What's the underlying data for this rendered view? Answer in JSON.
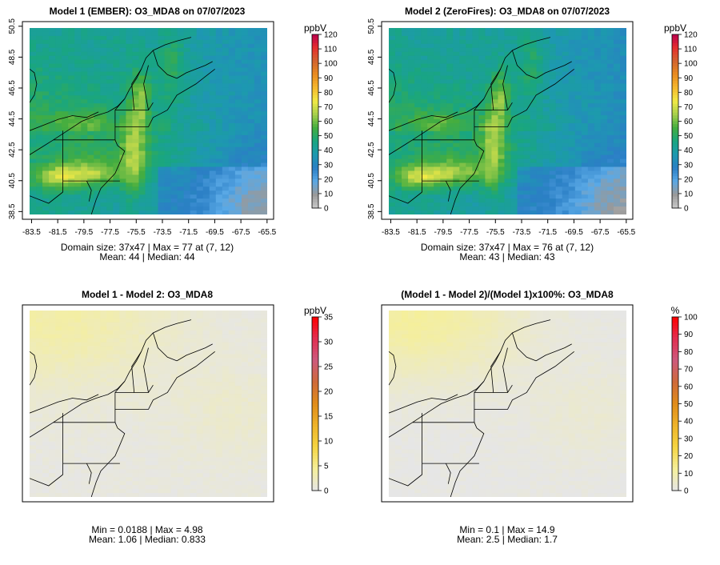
{
  "chart_data": [
    {
      "type": "heatmap",
      "title": "Model 1 (EMBER): O3_MDA8 on 07/07/2023",
      "x_ticks": [
        "-83.5",
        "-81.5",
        "-79.5",
        "-77.5",
        "-75.5",
        "-73.5",
        "-71.5",
        "-69.5",
        "-67.5",
        "-65.5"
      ],
      "y_ticks": [
        "38.5",
        "40.5",
        "42.5",
        "44.5",
        "46.5",
        "48.5",
        "50.5"
      ],
      "xlim": [
        -84.2,
        -65.0
      ],
      "ylim": [
        38.0,
        50.8
      ],
      "colorbar": {
        "unit": "ppbV",
        "ticks": [
          "120",
          "110",
          "100",
          "90",
          "80",
          "70",
          "60",
          "50",
          "40",
          "30",
          "20",
          "10",
          "0"
        ],
        "range": [
          0,
          120
        ],
        "stops": [
          "#c9c9c9",
          "#999999",
          "#5aa9e6",
          "#2b7fc5",
          "#1d99b0",
          "#19a680",
          "#44ad3f",
          "#a6cf4c",
          "#f2ea45",
          "#f5b82e",
          "#e98b1f",
          "#d2642f",
          "#e62e2e",
          "#b9004d"
        ]
      },
      "stats_line1": "Domain size: 37x47 | Max = 77 at (7, 12)",
      "stats_line2": "Mean: 44 |  Median: 44",
      "field": "ozone"
    },
    {
      "type": "heatmap",
      "title": "Model 2 (ZeroFires): O3_MDA8 on 07/07/2023",
      "x_ticks": [
        "-83.5",
        "-81.5",
        "-79.5",
        "-77.5",
        "-75.5",
        "-73.5",
        "-71.5",
        "-69.5",
        "-67.5",
        "-65.5"
      ],
      "y_ticks": [
        "38.5",
        "40.5",
        "42.5",
        "44.5",
        "46.5",
        "48.5",
        "50.5"
      ],
      "xlim": [
        -84.2,
        -65.0
      ],
      "ylim": [
        38.0,
        50.8
      ],
      "colorbar": {
        "unit": "ppbV",
        "ticks": [
          "120",
          "110",
          "100",
          "90",
          "80",
          "70",
          "60",
          "50",
          "40",
          "30",
          "20",
          "10",
          "0"
        ],
        "range": [
          0,
          120
        ],
        "stops": [
          "#c9c9c9",
          "#999999",
          "#5aa9e6",
          "#2b7fc5",
          "#1d99b0",
          "#19a680",
          "#44ad3f",
          "#a6cf4c",
          "#f2ea45",
          "#f5b82e",
          "#e98b1f",
          "#d2642f",
          "#e62e2e",
          "#b9004d"
        ]
      },
      "stats_line1": "Domain size: 37x47 | Max = 76 at (7, 12)",
      "stats_line2": "Mean: 43 |  Median: 43",
      "field": "ozone"
    },
    {
      "type": "heatmap",
      "title": "Model 1 - Model 2: O3_MDA8",
      "colorbar": {
        "unit": "ppbV",
        "ticks": [
          "35",
          "30",
          "25",
          "20",
          "15",
          "10",
          "5",
          "0"
        ],
        "range": [
          0,
          35
        ],
        "stops": [
          "#e6e6e6",
          "#f5ef9a",
          "#f5d542",
          "#eeb32a",
          "#e08c1a",
          "#cf6a3a",
          "#cd5a7e",
          "#e22e50",
          "#ff0000"
        ]
      },
      "stats_line1": "Min = 0.0188 | Max = 4.98",
      "stats_line2": "Mean: 1.06 |  Median: 0.833",
      "field": "diff"
    },
    {
      "type": "heatmap",
      "title": "(Model 1 - Model 2)/(Model 1)x100%: O3_MDA8",
      "colorbar": {
        "unit": "%",
        "ticks": [
          "100",
          "90",
          "80",
          "70",
          "60",
          "50",
          "40",
          "30",
          "20",
          "10",
          "0"
        ],
        "range": [
          0,
          100
        ],
        "stops": [
          "#e6e6e6",
          "#f5ef9a",
          "#f5d542",
          "#eeb32a",
          "#e08c1a",
          "#cf6a3a",
          "#cd5a7e",
          "#e22e50",
          "#ff0000"
        ]
      },
      "stats_line1": "Min = 0.1 | Max = 14.9",
      "stats_line2": "Mean: 2.5 |  Median: 1.7",
      "field": "pct"
    }
  ]
}
